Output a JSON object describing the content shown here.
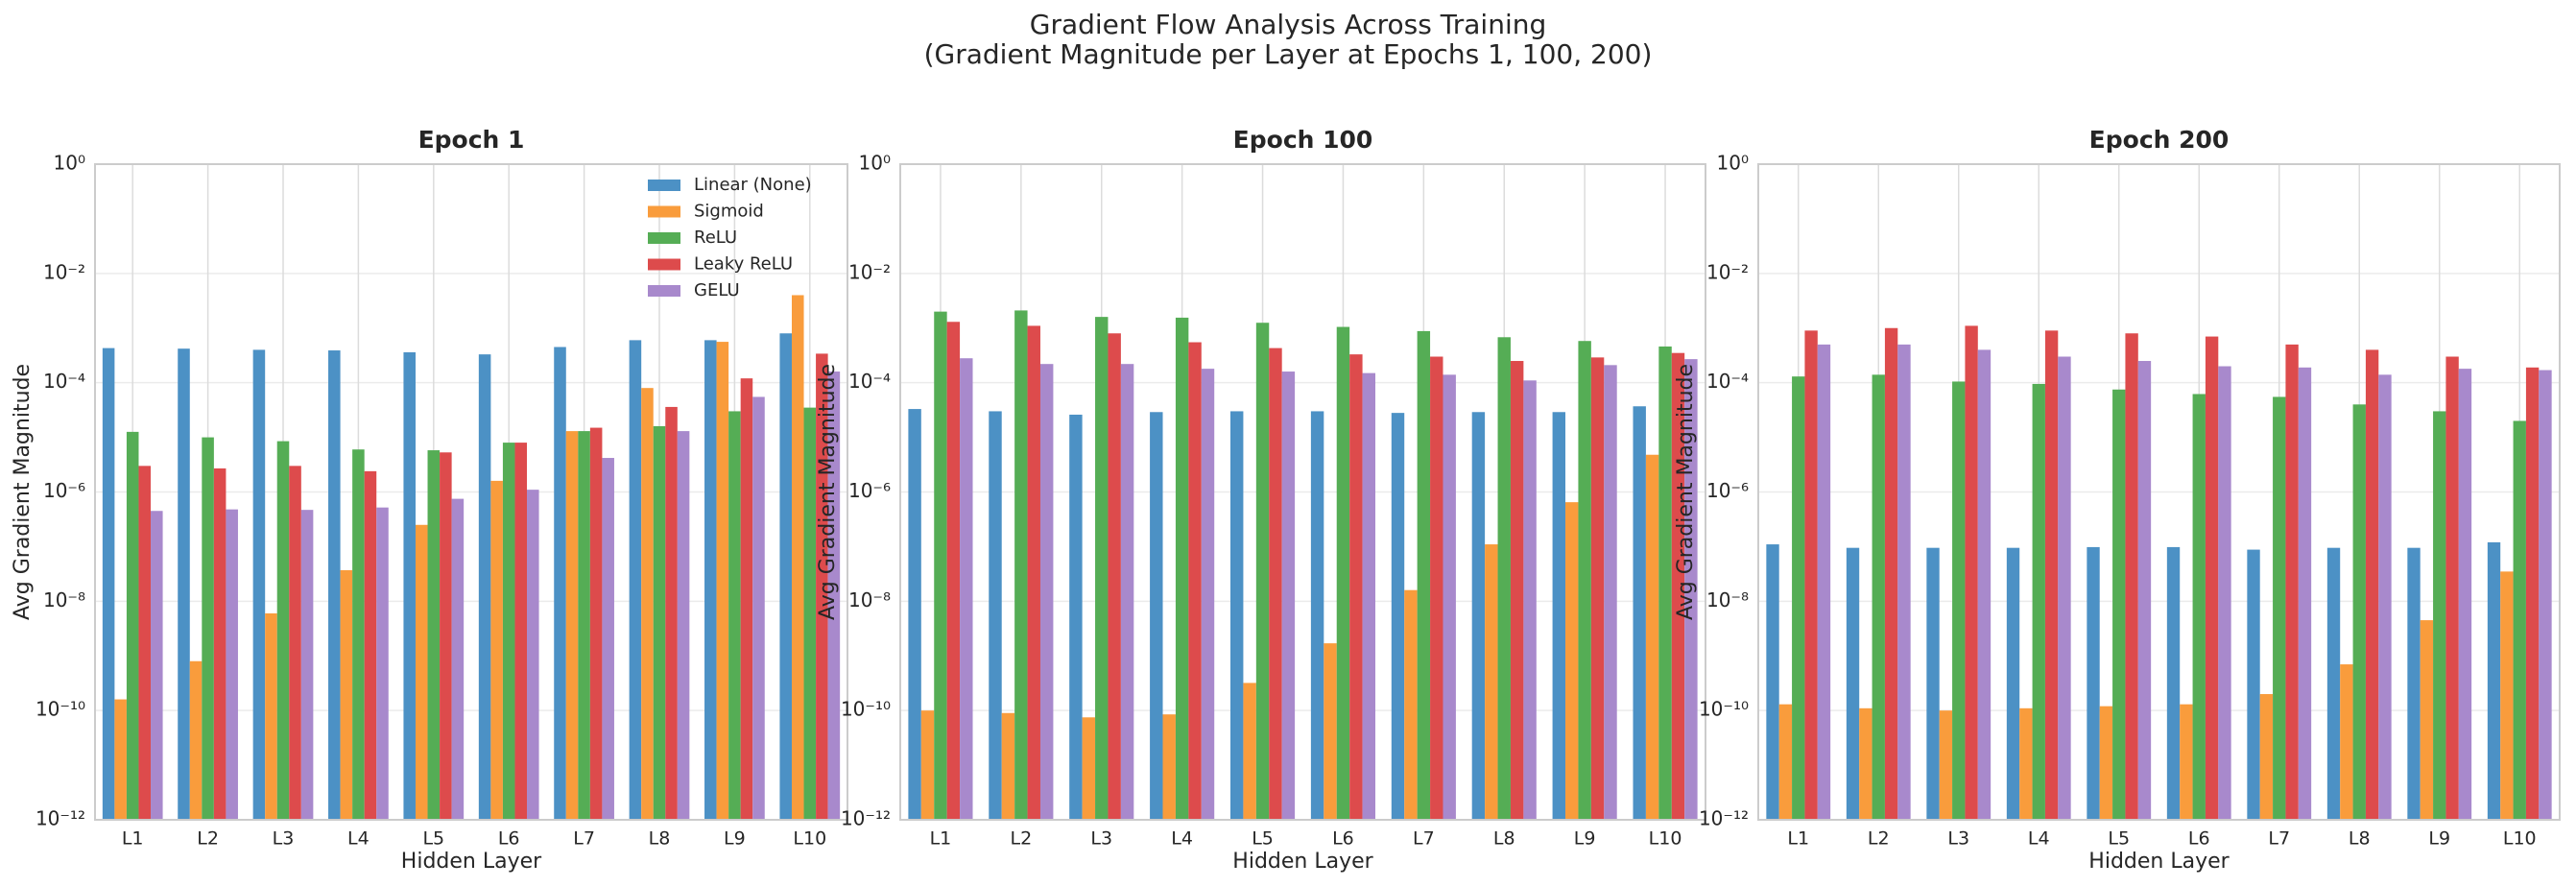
{
  "title": [
    "Gradient Flow Analysis Across Training",
    "(Gradient Magnitude per Layer at Epochs 1, 100, 200)"
  ],
  "chart_data": [
    {
      "type": "bar",
      "title": "Epoch 1",
      "xlabel": "Hidden Layer",
      "ylabel": "Avg Gradient Magnitude",
      "yscale": "log",
      "grid": true,
      "legend": "upper right",
      "categories": [
        "L1",
        "L2",
        "L3",
        "L4",
        "L5",
        "L6",
        "L7",
        "L8",
        "L9",
        "L10"
      ],
      "ylim": [
        1e-12,
        1
      ],
      "yticks": [
        {
          "value": 1e-12,
          "label": "10⁻¹²"
        },
        {
          "value": 1e-10,
          "label": "10⁻¹⁰"
        },
        {
          "value": 1e-08,
          "label": "10⁻⁸"
        },
        {
          "value": 1e-06,
          "label": "10⁻⁶"
        },
        {
          "value": 0.0001,
          "label": "10⁻⁴"
        },
        {
          "value": 0.01,
          "label": "10⁻²"
        },
        {
          "value": 1,
          "label": "10⁰"
        }
      ],
      "series": [
        {
          "name": "Linear (None)",
          "color": "#4c91c5",
          "values": [
            0.00043,
            0.00042,
            0.0004,
            0.00039,
            0.00036,
            0.00033,
            0.00045,
            0.0006,
            0.0006,
            0.0008
          ]
        },
        {
          "name": "Sigmoid",
          "color": "#f99c3c",
          "values": [
            1.6e-10,
            8e-10,
            6e-09,
            3.7e-08,
            2.5e-07,
            1.6e-06,
            1.3e-05,
            8e-05,
            0.00056,
            0.004
          ]
        },
        {
          "name": "ReLU",
          "color": "#55ad55",
          "values": [
            1.26e-05,
            1e-05,
            8.5e-06,
            6e-06,
            5.8e-06,
            8e-06,
            1.3e-05,
            1.6e-05,
            3e-05,
            3.5e-05
          ]
        },
        {
          "name": "Leaky ReLU",
          "color": "#dd4b4c",
          "values": [
            3e-06,
            2.7e-06,
            3e-06,
            2.4e-06,
            5.3e-06,
            8e-06,
            1.5e-05,
            3.6e-05,
            0.00012,
            0.00034
          ]
        },
        {
          "name": "GELU",
          "color": "#a889cc",
          "values": [
            4.5e-07,
            4.8e-07,
            4.7e-07,
            5.2e-07,
            7.5e-07,
            1.1e-06,
            4.2e-06,
            1.3e-05,
            5.5e-05,
            0.00016
          ]
        }
      ]
    },
    {
      "type": "bar",
      "title": "Epoch 100",
      "xlabel": "Hidden Layer",
      "ylabel": "Avg Gradient Magnitude",
      "yscale": "log",
      "grid": true,
      "categories": [
        "L1",
        "L2",
        "L3",
        "L4",
        "L5",
        "L6",
        "L7",
        "L8",
        "L9",
        "L10"
      ],
      "ylim": [
        1e-12,
        1
      ],
      "yticks": [
        {
          "value": 1e-12,
          "label": "10⁻¹²"
        },
        {
          "value": 1e-10,
          "label": "10⁻¹⁰"
        },
        {
          "value": 1e-08,
          "label": "10⁻⁸"
        },
        {
          "value": 1e-06,
          "label": "10⁻⁶"
        },
        {
          "value": 0.0001,
          "label": "10⁻⁴"
        },
        {
          "value": 0.01,
          "label": "10⁻²"
        },
        {
          "value": 1,
          "label": "10⁰"
        }
      ],
      "series": [
        {
          "name": "Linear (None)",
          "color": "#4c91c5",
          "values": [
            3.3e-05,
            3e-05,
            2.6e-05,
            2.9e-05,
            3e-05,
            3e-05,
            2.8e-05,
            2.9e-05,
            2.9e-05,
            3.7e-05
          ]
        },
        {
          "name": "Sigmoid",
          "color": "#f99c3c",
          "values": [
            1e-10,
            9e-11,
            7.5e-11,
            8.5e-11,
            3.2e-10,
            1.7e-09,
            1.6e-08,
            1.1e-07,
            6.5e-07,
            4.8e-06
          ]
        },
        {
          "name": "ReLU",
          "color": "#55ad55",
          "values": [
            0.002,
            0.0021,
            0.0016,
            0.00155,
            0.00125,
            0.00105,
            0.00088,
            0.00068,
            0.00058,
            0.00046
          ]
        },
        {
          "name": "Leaky ReLU",
          "color": "#dd4b4c",
          "values": [
            0.0013,
            0.0011,
            0.0008,
            0.00055,
            0.00043,
            0.00033,
            0.0003,
            0.00025,
            0.00029,
            0.00035
          ]
        },
        {
          "name": "GELU",
          "color": "#a889cc",
          "values": [
            0.00028,
            0.00022,
            0.00022,
            0.00018,
            0.00016,
            0.00015,
            0.00014,
            0.00011,
            0.00021,
            0.00027
          ]
        }
      ]
    },
    {
      "type": "bar",
      "title": "Epoch 200",
      "xlabel": "Hidden Layer",
      "ylabel": "Avg Gradient Magnitude",
      "yscale": "log",
      "grid": true,
      "categories": [
        "L1",
        "L2",
        "L3",
        "L4",
        "L5",
        "L6",
        "L7",
        "L8",
        "L9",
        "L10"
      ],
      "ylim": [
        1e-12,
        1
      ],
      "yticks": [
        {
          "value": 1e-12,
          "label": "10⁻¹²"
        },
        {
          "value": 1e-10,
          "label": "10⁻¹⁰"
        },
        {
          "value": 1e-08,
          "label": "10⁻⁸"
        },
        {
          "value": 1e-06,
          "label": "10⁻⁶"
        },
        {
          "value": 0.0001,
          "label": "10⁻⁴"
        },
        {
          "value": 0.01,
          "label": "10⁻²"
        },
        {
          "value": 1,
          "label": "10⁰"
        }
      ],
      "series": [
        {
          "name": "Linear (None)",
          "color": "#4c91c5",
          "values": [
            1.1e-07,
            9.5e-08,
            9.5e-08,
            9.5e-08,
            9.8e-08,
            9.8e-08,
            8.8e-08,
            9.5e-08,
            9.5e-08,
            1.2e-07
          ]
        },
        {
          "name": "Sigmoid",
          "color": "#f99c3c",
          "values": [
            1.3e-10,
            1.1e-10,
            1e-10,
            1.1e-10,
            1.2e-10,
            1.3e-10,
            2e-10,
            7e-10,
            4.5e-09,
            3.5e-08
          ]
        },
        {
          "name": "ReLU",
          "color": "#55ad55",
          "values": [
            0.00013,
            0.00014,
            0.000105,
            9.5e-05,
            7.5e-05,
            6.2e-05,
            5.5e-05,
            4e-05,
            3e-05,
            2e-05
          ]
        },
        {
          "name": "Leaky ReLU",
          "color": "#dd4b4c",
          "values": [
            0.0009,
            0.001,
            0.0011,
            0.0009,
            0.0008,
            0.0007,
            0.0005,
            0.0004,
            0.0003,
            0.00019
          ]
        },
        {
          "name": "GELU",
          "color": "#a889cc",
          "values": [
            0.0005,
            0.0005,
            0.0004,
            0.0003,
            0.00025,
            0.0002,
            0.00019,
            0.00014,
            0.00018,
            0.00017
          ]
        }
      ]
    }
  ]
}
